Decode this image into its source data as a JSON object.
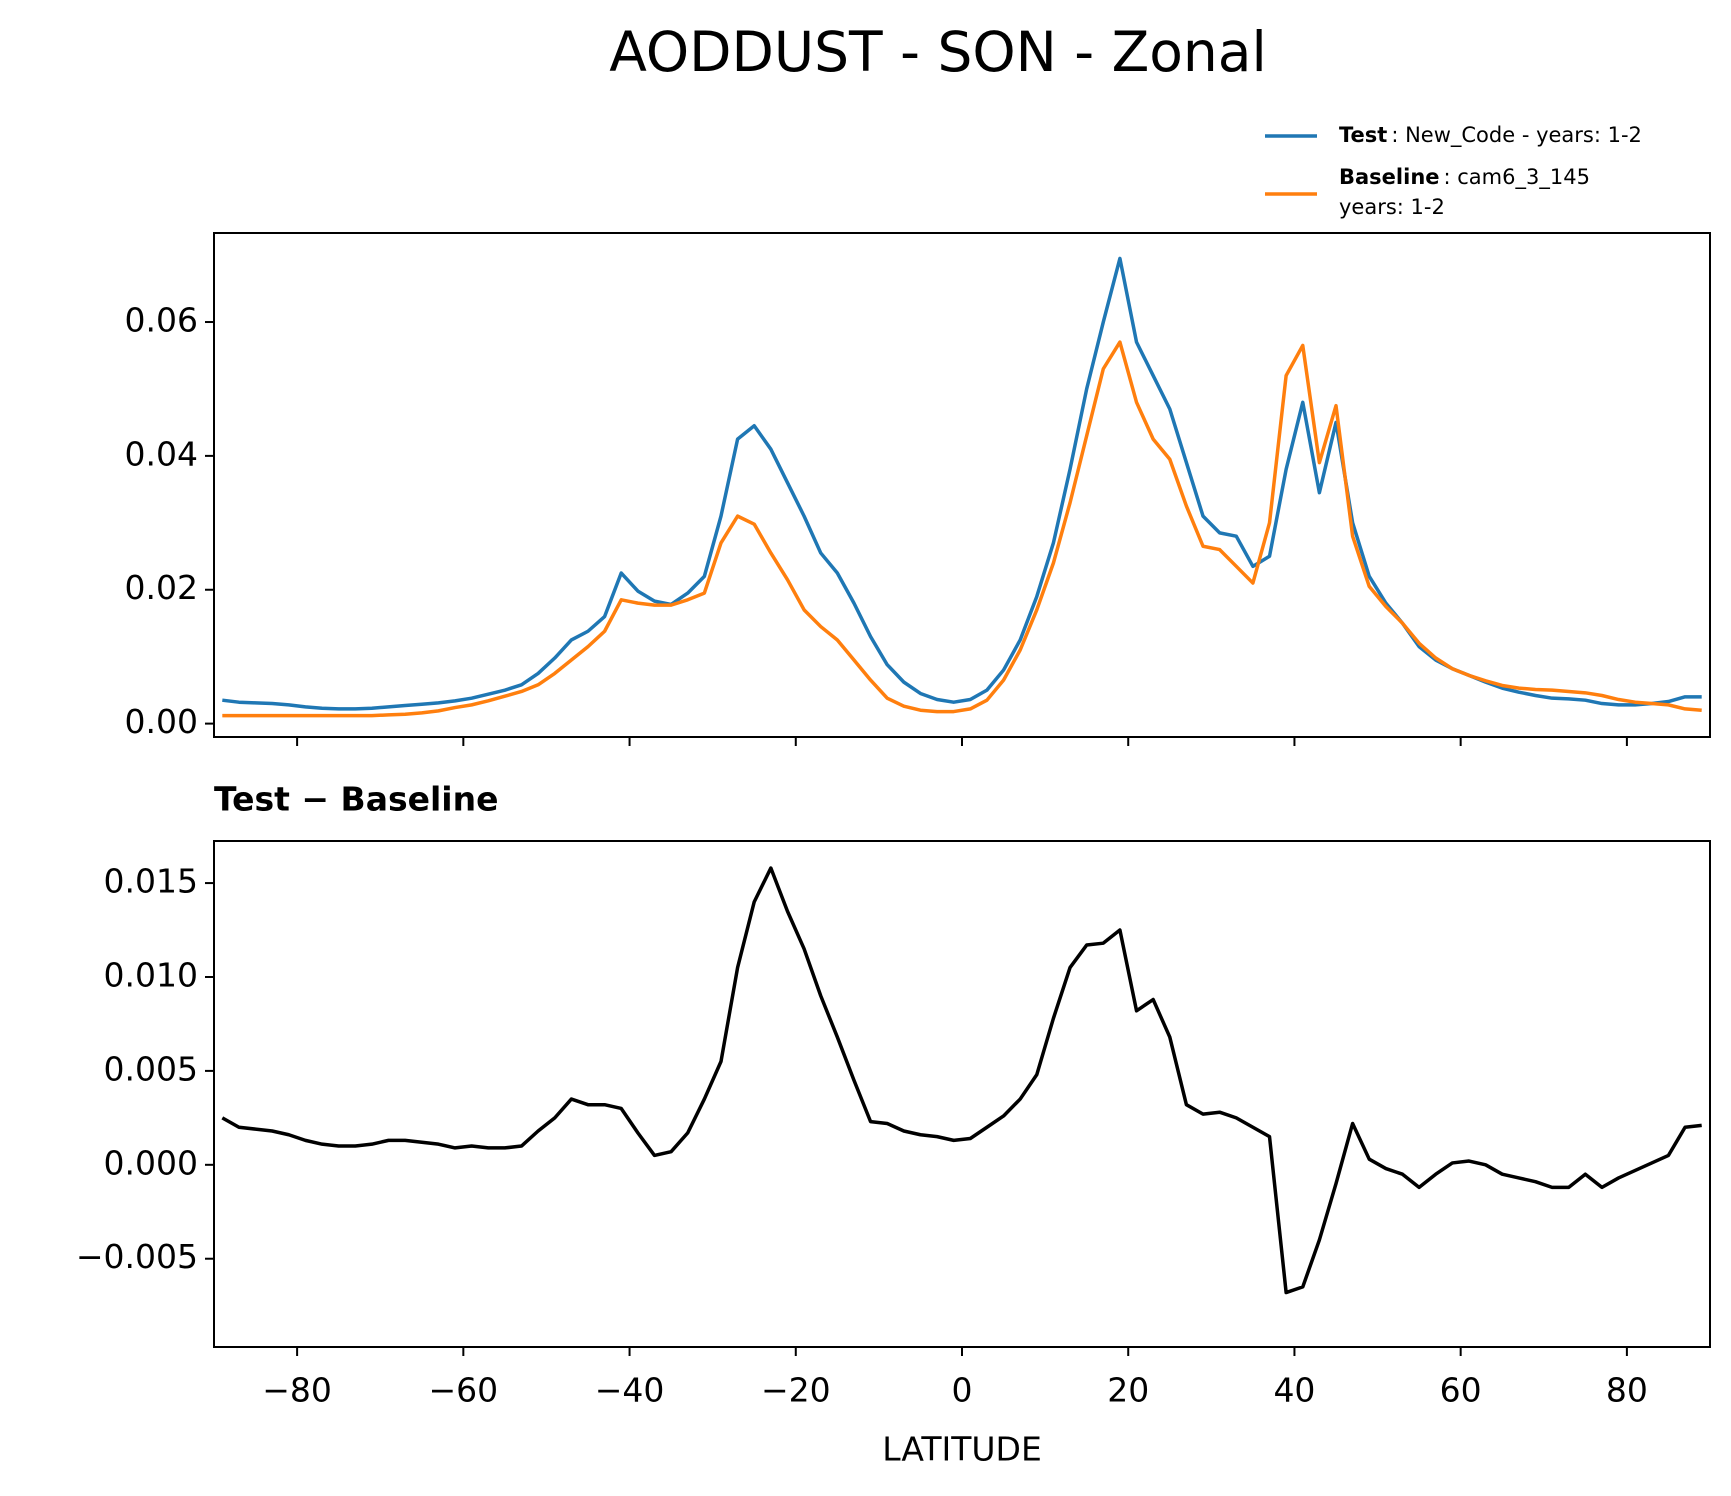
{
  "chart_data": [
    {
      "type": "line",
      "title": "AODDUST - SON - Zonal",
      "x": [
        -89,
        -87,
        -85,
        -83,
        -81,
        -79,
        -77,
        -75,
        -73,
        -71,
        -69,
        -67,
        -65,
        -63,
        -61,
        -59,
        -57,
        -55,
        -53,
        -51,
        -49,
        -47,
        -45,
        -43,
        -41,
        -39,
        -37,
        -35,
        -33,
        -31,
        -29,
        -27,
        -25,
        -23,
        -21,
        -19,
        -17,
        -15,
        -13,
        -11,
        -9,
        -7,
        -5,
        -3,
        -1,
        1,
        3,
        5,
        7,
        9,
        11,
        13,
        15,
        17,
        19,
        21,
        23,
        25,
        27,
        29,
        31,
        33,
        35,
        37,
        39,
        41,
        43,
        45,
        47,
        49,
        51,
        53,
        55,
        57,
        59,
        61,
        63,
        65,
        67,
        69,
        71,
        73,
        75,
        77,
        79,
        81,
        83,
        85,
        87,
        89
      ],
      "series": [
        {
          "name": "Test",
          "label": ": New_Code - years: 1-2",
          "color": "#1f77b4",
          "values": [
            0.0035,
            0.0032,
            0.0031,
            0.003,
            0.0028,
            0.0025,
            0.0023,
            0.0022,
            0.0022,
            0.0023,
            0.0025,
            0.0027,
            0.0029,
            0.0031,
            0.0034,
            0.0038,
            0.0044,
            0.005,
            0.0058,
            0.0075,
            0.0098,
            0.0125,
            0.0138,
            0.016,
            0.0225,
            0.0198,
            0.0183,
            0.0178,
            0.0195,
            0.022,
            0.031,
            0.0425,
            0.0445,
            0.041,
            0.036,
            0.031,
            0.0255,
            0.0225,
            0.018,
            0.013,
            0.0088,
            0.0062,
            0.0045,
            0.0036,
            0.0032,
            0.0036,
            0.005,
            0.008,
            0.0125,
            0.019,
            0.027,
            0.038,
            0.05,
            0.06,
            0.0695,
            0.057,
            0.052,
            0.047,
            0.039,
            0.031,
            0.0285,
            0.028,
            0.0235,
            0.025,
            0.038,
            0.048,
            0.0345,
            0.045,
            0.03,
            0.022,
            0.018,
            0.015,
            0.0115,
            0.0095,
            0.0082,
            0.0072,
            0.0062,
            0.0053,
            0.0047,
            0.0042,
            0.0038,
            0.0037,
            0.0035,
            0.003,
            0.0028,
            0.0028,
            0.003,
            0.0033,
            0.004,
            0.004
          ]
        },
        {
          "name": "Baseline",
          "label_lines": [
            ": cam6_3_145",
            "years: 1-2"
          ],
          "color": "#ff7f0e",
          "values": [
            0.0012,
            0.0012,
            0.0012,
            0.0012,
            0.0012,
            0.0012,
            0.0012,
            0.0012,
            0.0012,
            0.0012,
            0.0013,
            0.0014,
            0.0016,
            0.0019,
            0.0024,
            0.0028,
            0.0034,
            0.0041,
            0.0048,
            0.0058,
            0.0075,
            0.0095,
            0.0115,
            0.0138,
            0.0185,
            0.018,
            0.0177,
            0.0177,
            0.0185,
            0.0195,
            0.027,
            0.031,
            0.0298,
            0.0255,
            0.0215,
            0.017,
            0.0145,
            0.0125,
            0.0095,
            0.0065,
            0.0038,
            0.0026,
            0.002,
            0.0018,
            0.0018,
            0.0022,
            0.0035,
            0.0065,
            0.011,
            0.017,
            0.024,
            0.033,
            0.043,
            0.053,
            0.057,
            0.048,
            0.0425,
            0.0395,
            0.0325,
            0.0265,
            0.026,
            0.0235,
            0.021,
            0.03,
            0.052,
            0.0565,
            0.039,
            0.0475,
            0.028,
            0.0205,
            0.0175,
            0.015,
            0.012,
            0.0098,
            0.0082,
            0.0072,
            0.0064,
            0.0057,
            0.0053,
            0.0051,
            0.005,
            0.0048,
            0.0046,
            0.0042,
            0.0036,
            0.0032,
            0.003,
            0.0028,
            0.0022,
            0.002
          ]
        }
      ],
      "xlim": [
        -90,
        90
      ],
      "ylim": [
        -0.002,
        0.0733
      ],
      "xticks": [
        -80,
        -60,
        -40,
        -20,
        0,
        20,
        40,
        60,
        80
      ],
      "x_tick_labels_visible": false,
      "yticks": [
        {
          "value": 0,
          "label": "0.00"
        },
        0.02,
        0.04,
        0.06
      ],
      "legend": "upper right"
    },
    {
      "type": "line",
      "title": "Test − Baseline",
      "xlabel": "LATITUDE",
      "x": [
        -89,
        -87,
        -85,
        -83,
        -81,
        -79,
        -77,
        -75,
        -73,
        -71,
        -69,
        -67,
        -65,
        -63,
        -61,
        -59,
        -57,
        -55,
        -53,
        -51,
        -49,
        -47,
        -45,
        -43,
        -41,
        -39,
        -37,
        -35,
        -33,
        -31,
        -29,
        -27,
        -25,
        -23,
        -21,
        -19,
        -17,
        -15,
        -13,
        -11,
        -9,
        -7,
        -5,
        -3,
        -1,
        1,
        3,
        5,
        7,
        9,
        11,
        13,
        15,
        17,
        19,
        21,
        23,
        25,
        27,
        29,
        31,
        33,
        35,
        37,
        39,
        41,
        43,
        45,
        47,
        49,
        51,
        53,
        55,
        57,
        59,
        61,
        63,
        65,
        67,
        69,
        71,
        73,
        75,
        77,
        79,
        81,
        83,
        85,
        87,
        89
      ],
      "series": [
        {
          "color": "#000000",
          "values": [
            0.0025,
            0.002,
            0.0019,
            0.0018,
            0.0016,
            0.0013,
            0.0011,
            0.001,
            0.001,
            0.0011,
            0.0013,
            0.0013,
            0.0012,
            0.0011,
            0.0009,
            0.001,
            0.0009,
            0.0009,
            0.001,
            0.0018,
            0.0025,
            0.0035,
            0.0032,
            0.0032,
            0.003,
            0.0017,
            0.0005,
            0.0007,
            0.0017,
            0.0035,
            0.0055,
            0.0105,
            0.014,
            0.0158,
            0.0135,
            0.0115,
            0.009,
            0.0068,
            0.0045,
            0.0023,
            0.0022,
            0.0018,
            0.0016,
            0.0015,
            0.0013,
            0.0014,
            0.002,
            0.0026,
            0.0035,
            0.0048,
            0.0078,
            0.0105,
            0.0117,
            0.0118,
            0.0125,
            0.0082,
            0.0088,
            0.0068,
            0.0032,
            0.0027,
            0.0028,
            0.0025,
            0.002,
            0.0015,
            -0.0068,
            -0.0065,
            -0.004,
            -0.001,
            0.0022,
            0.0003,
            -0.0002,
            -0.0005,
            -0.0012,
            -0.0005,
            0.0001,
            0.0002,
            0,
            -0.0005,
            -0.0007,
            -0.0009,
            -0.0012,
            -0.0012,
            -0.0005,
            -0.0012,
            -0.0007,
            -0.0003,
            0.0001,
            0.0005,
            0.002,
            0.0021
          ]
        }
      ],
      "xlim": [
        -90,
        90
      ],
      "ylim": [
        -0.0097,
        0.01724
      ],
      "xticks": [
        {
          "value": -80,
          "label": "−80"
        },
        {
          "value": -60,
          "label": "−60"
        },
        {
          "value": -40,
          "label": "−40"
        },
        {
          "value": -20,
          "label": "−20"
        },
        0,
        20,
        40,
        60,
        80
      ],
      "x_tick_labels_visible": true,
      "yticks": [
        {
          "value": -0.005,
          "label": "−0.005"
        },
        {
          "value": 0,
          "label": "0.000"
        },
        0.005,
        {
          "value": 0.01,
          "label": "0.010"
        },
        0.015
      ]
    }
  ]
}
